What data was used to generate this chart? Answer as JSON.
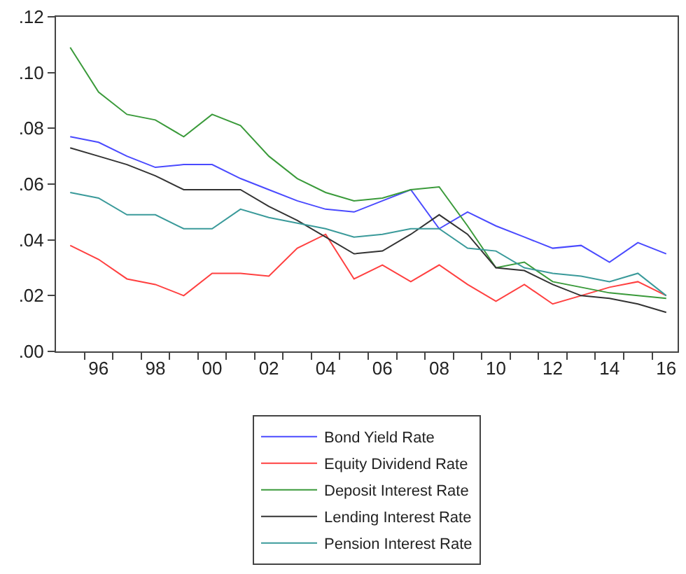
{
  "chart_data": {
    "type": "line",
    "x": [
      1995,
      1996,
      1997,
      1998,
      1999,
      2000,
      2001,
      2002,
      2003,
      2004,
      2005,
      2006,
      2007,
      2008,
      2009,
      2010,
      2011,
      2012,
      2013,
      2014,
      2015,
      2016
    ],
    "series": [
      {
        "name": "Bond Yield Rate",
        "color": "#4a4aff",
        "values": [
          0.077,
          0.075,
          0.07,
          0.066,
          0.067,
          0.067,
          0.062,
          0.058,
          0.054,
          0.051,
          0.05,
          0.054,
          0.058,
          0.044,
          0.05,
          0.045,
          0.041,
          0.037,
          0.038,
          0.032,
          0.039,
          0.035
        ]
      },
      {
        "name": "Equity Dividend Rate",
        "color": "#ff4040",
        "values": [
          0.038,
          0.033,
          0.026,
          0.024,
          0.02,
          0.028,
          0.028,
          0.027,
          0.037,
          0.042,
          0.026,
          0.031,
          0.025,
          0.031,
          0.024,
          0.018,
          0.024,
          0.017,
          0.02,
          0.023,
          0.025,
          0.02
        ]
      },
      {
        "name": "Deposit Interest Rate",
        "color": "#3a9a3a",
        "values": [
          0.109,
          0.093,
          0.085,
          0.083,
          0.077,
          0.085,
          0.081,
          0.07,
          0.062,
          0.057,
          0.054,
          0.055,
          0.058,
          0.059,
          0.045,
          0.03,
          0.032,
          0.025,
          0.023,
          0.021,
          0.02,
          0.019
        ]
      },
      {
        "name": "Lending Interest Rate",
        "color": "#333333",
        "values": [
          0.073,
          0.07,
          0.067,
          0.063,
          0.058,
          0.058,
          0.058,
          0.052,
          0.047,
          0.041,
          0.035,
          0.036,
          0.042,
          0.049,
          0.042,
          0.03,
          0.029,
          0.024,
          0.02,
          0.019,
          0.017,
          0.014
        ]
      },
      {
        "name": "Pension Interest Rate",
        "color": "#3a9a9a",
        "values": [
          0.057,
          0.055,
          0.049,
          0.049,
          0.044,
          0.044,
          0.051,
          0.048,
          0.046,
          0.044,
          0.041,
          0.042,
          0.044,
          0.044,
          0.037,
          0.036,
          0.03,
          0.028,
          0.027,
          0.025,
          0.028,
          0.02
        ]
      }
    ],
    "xlim": [
      1994.5,
      2016.4
    ],
    "xticks": [
      {
        "value": 1995.5,
        "label": null
      },
      {
        "value": 1996,
        "label": "96"
      },
      {
        "value": 1996.5,
        "label": null
      },
      {
        "value": 1997.5,
        "label": null
      },
      {
        "value": 1998,
        "label": "98"
      },
      {
        "value": 1998.5,
        "label": null
      },
      {
        "value": 1999.5,
        "label": null
      },
      {
        "value": 2000,
        "label": "00"
      },
      {
        "value": 2000.5,
        "label": null
      },
      {
        "value": 2001.5,
        "label": null
      },
      {
        "value": 2002,
        "label": "02"
      },
      {
        "value": 2002.5,
        "label": null
      },
      {
        "value": 2003.5,
        "label": null
      },
      {
        "value": 2004,
        "label": "04"
      },
      {
        "value": 2004.5,
        "label": null
      },
      {
        "value": 2005.5,
        "label": null
      },
      {
        "value": 2006,
        "label": "06"
      },
      {
        "value": 2006.5,
        "label": null
      },
      {
        "value": 2007.5,
        "label": null
      },
      {
        "value": 2008,
        "label": "08"
      },
      {
        "value": 2008.5,
        "label": null
      },
      {
        "value": 2009.5,
        "label": null
      },
      {
        "value": 2010,
        "label": "10"
      },
      {
        "value": 2010.5,
        "label": null
      },
      {
        "value": 2011.5,
        "label": null
      },
      {
        "value": 2012,
        "label": "12"
      },
      {
        "value": 2012.5,
        "label": null
      },
      {
        "value": 2013.5,
        "label": null
      },
      {
        "value": 2014,
        "label": "14"
      },
      {
        "value": 2014.5,
        "label": null
      },
      {
        "value": 2015.5,
        "label": null
      },
      {
        "value": 2016,
        "label": "16"
      }
    ],
    "ylim": [
      0,
      0.12
    ],
    "yticks": [
      {
        "value": 0,
        "label": ".00"
      },
      {
        "value": 0.02,
        "label": ".02"
      },
      {
        "value": 0.04,
        "label": ".04"
      },
      {
        "value": 0.06,
        "label": ".06"
      },
      {
        "value": 0.08,
        "label": ".08"
      },
      {
        "value": 0.1,
        "label": ".10"
      },
      {
        "value": 0.12,
        "label": ".12"
      }
    ],
    "legend": "bottom"
  }
}
